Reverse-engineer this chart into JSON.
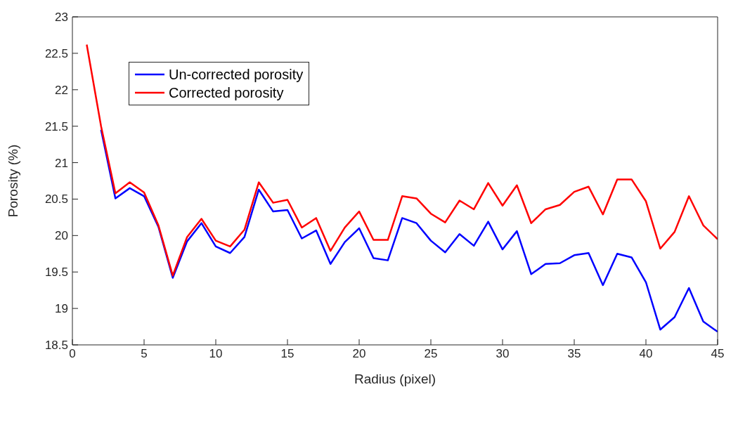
{
  "chart_data": {
    "type": "line",
    "xlabel": "Radius (pixel)",
    "ylabel": "Porosity (%)",
    "x": [
      1,
      2,
      3,
      4,
      5,
      6,
      7,
      8,
      9,
      10,
      11,
      12,
      13,
      14,
      15,
      16,
      17,
      18,
      19,
      20,
      21,
      22,
      23,
      24,
      25,
      26,
      27,
      28,
      29,
      30,
      31,
      32,
      33,
      34,
      35,
      36,
      37,
      38,
      39,
      40,
      41,
      42,
      43,
      44,
      45
    ],
    "series": [
      {
        "name": "Un-corrected porosity",
        "color": "#0000ff",
        "values": [
          null,
          21.45,
          20.51,
          20.65,
          20.54,
          20.12,
          19.42,
          19.92,
          20.17,
          19.85,
          19.76,
          19.98,
          20.63,
          20.33,
          20.35,
          19.96,
          20.07,
          19.61,
          19.91,
          20.1,
          19.69,
          19.66,
          20.24,
          20.17,
          19.93,
          19.77,
          20.02,
          19.86,
          20.19,
          19.81,
          20.06,
          19.47,
          19.61,
          19.62,
          19.73,
          19.76,
          19.32,
          19.75,
          19.7,
          19.36,
          18.71,
          18.88,
          19.28,
          18.82,
          18.68
        ]
      },
      {
        "name": "Corrected porosity",
        "color": "#ff0000",
        "values": [
          22.62,
          21.5,
          20.58,
          20.73,
          20.59,
          20.14,
          19.45,
          19.98,
          20.23,
          19.93,
          19.85,
          20.08,
          20.73,
          20.45,
          20.49,
          20.11,
          20.24,
          19.79,
          20.11,
          20.33,
          19.94,
          19.94,
          20.54,
          20.51,
          20.3,
          20.18,
          20.48,
          20.36,
          20.72,
          20.41,
          20.69,
          20.17,
          20.36,
          20.42,
          20.6,
          20.67,
          20.29,
          20.77,
          20.77,
          20.47,
          19.82,
          20.05,
          20.54,
          20.14,
          19.95
        ]
      }
    ],
    "xlim": [
      0,
      45
    ],
    "xticks": [
      0,
      5,
      10,
      15,
      20,
      25,
      30,
      35,
      40,
      45
    ],
    "ylim": [
      18.5,
      23
    ],
    "yticks": [
      18.5,
      19,
      19.5,
      20,
      20.5,
      21,
      21.5,
      22,
      22.5,
      23
    ],
    "grid": false,
    "legend": "top left",
    "marker": "none",
    "line_style": "solid"
  }
}
